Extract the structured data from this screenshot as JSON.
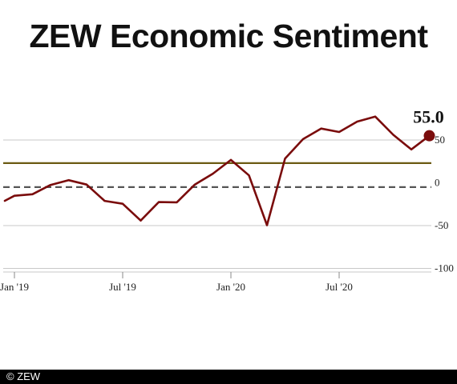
{
  "title": "ZEW Economic Sentiment",
  "footer": "© ZEW",
  "chart_data": {
    "type": "line",
    "title": "ZEW Economic Sentiment",
    "xlabel": "",
    "ylabel": "",
    "x_ticks": [
      "Jan '19",
      "Jul '19",
      "Jan '20",
      "Jul '20"
    ],
    "y_ticks": [
      50,
      0,
      -50,
      -100
    ],
    "ylim": [
      -100,
      55
    ],
    "grid": true,
    "reference_lines": [
      {
        "value": 23,
        "style": "solid",
        "color": "#6b5a12"
      },
      {
        "value": -5,
        "style": "dashed",
        "color": "#555555"
      }
    ],
    "last_value_label": "55.0",
    "series": [
      {
        "color": "#7a0c0c",
        "x": [
          "2018-12",
          "2019-01",
          "2019-02",
          "2019-03",
          "2019-04",
          "2019-05",
          "2019-06",
          "2019-07",
          "2019-08",
          "2019-09",
          "2019-10",
          "2019-11",
          "2019-12",
          "2020-01",
          "2020-02",
          "2020-03",
          "2020-04",
          "2020-05",
          "2020-06",
          "2020-07",
          "2020-08",
          "2020-09",
          "2020-10",
          "2020-11",
          "2020-12"
        ],
        "values": [
          -21.0,
          -15.1,
          -13.4,
          -2.5,
          3.1,
          -2.1,
          -21.1,
          -24.5,
          -44.1,
          -22.5,
          -22.8,
          -2.1,
          10.7,
          26.7,
          8.7,
          -49.5,
          28.2,
          51.0,
          63.4,
          59.3,
          71.5,
          77.4,
          56.1,
          39.0,
          55.0
        ]
      }
    ]
  }
}
